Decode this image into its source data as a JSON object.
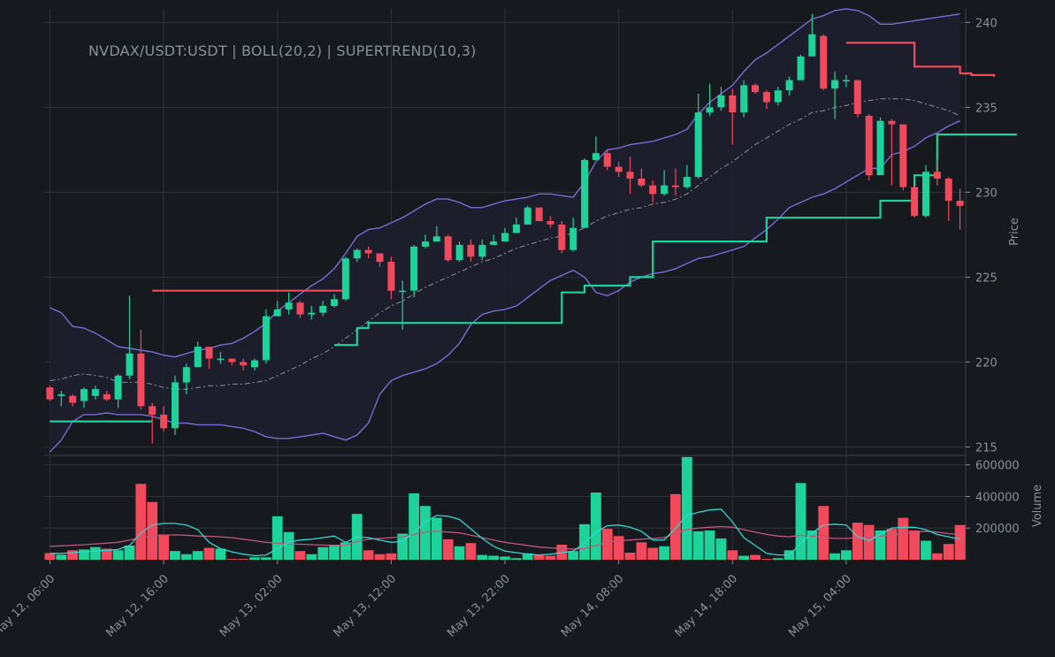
{
  "chart_data": {
    "type": "candlestick",
    "title": "NVDAX/USDT:USDT | BOLL(20,2) | SUPERTREND(10,3)",
    "price_axis": {
      "label": "Price",
      "ylim": [
        214.5,
        240.8
      ],
      "ticks": [
        215,
        220,
        225,
        230,
        235,
        240
      ]
    },
    "volume_axis": {
      "label": "Volume",
      "ylim": [
        0,
        660000
      ],
      "ticks": [
        200000,
        400000,
        600000
      ],
      "tick_labels": [
        "200000",
        "400000",
        "600000"
      ]
    },
    "x_tick_labels": [
      "May 12, 06:00",
      "May 12, 16:00",
      "May 13, 02:00",
      "May 13, 12:00",
      "May 13, 22:00",
      "May 14, 08:00",
      "May 14, 18:00",
      "May 15, 04:00"
    ],
    "x_tick_positions": [
      0,
      10,
      20,
      30,
      40,
      50,
      60,
      70
    ],
    "grid": true,
    "colors": {
      "background": "#16191e",
      "grid": "#2e3339",
      "up": "#1ed39a",
      "down": "#f2495c",
      "boll_band": "#7b6ad6",
      "boll_fill": "#1e1f2e",
      "boll_mid": "#8a8f9c",
      "supertrend_up": "#1ed39a",
      "supertrend_down": "#f2495c",
      "vol_ma_fast": "#2fd7d0",
      "vol_ma_slow": "#c2577e",
      "text": "#8b9098"
    },
    "candles": [
      [
        218.5,
        217.8,
        218.6,
        217.7
      ],
      [
        218.0,
        218.1,
        218.3,
        217.4
      ],
      [
        218.0,
        217.6,
        218.1,
        217.4
      ],
      [
        217.7,
        218.4,
        218.5,
        217.3
      ],
      [
        218.0,
        218.4,
        218.6,
        217.8
      ],
      [
        218.1,
        217.8,
        218.3,
        217.7
      ],
      [
        217.8,
        219.2,
        219.3,
        217.3
      ],
      [
        219.2,
        220.5,
        223.9,
        219.0
      ],
      [
        220.5,
        217.4,
        221.9,
        217.2
      ],
      [
        217.4,
        216.9,
        217.6,
        215.2
      ],
      [
        216.9,
        216.1,
        217.4,
        215.9
      ],
      [
        216.1,
        218.8,
        219.2,
        215.7
      ],
      [
        218.8,
        219.7,
        219.9,
        218.1
      ],
      [
        219.7,
        220.9,
        221.2,
        219.7
      ],
      [
        220.9,
        220.2,
        220.9,
        219.6
      ],
      [
        220.2,
        220.2,
        220.6,
        219.9
      ],
      [
        220.2,
        220.0,
        220.2,
        219.8
      ],
      [
        220.0,
        219.8,
        220.2,
        219.5
      ],
      [
        219.7,
        220.1,
        220.2,
        219.5
      ],
      [
        220.1,
        222.7,
        223.1,
        219.9
      ],
      [
        222.7,
        223.1,
        223.6,
        222.7
      ],
      [
        223.1,
        223.5,
        224.1,
        222.8
      ],
      [
        223.5,
        222.8,
        223.6,
        222.6
      ],
      [
        222.8,
        222.9,
        223.3,
        222.5
      ],
      [
        222.9,
        223.3,
        223.6,
        222.7
      ],
      [
        223.3,
        223.7,
        224.0,
        223.2
      ],
      [
        223.7,
        226.1,
        226.2,
        223.6
      ],
      [
        226.1,
        226.6,
        226.7,
        225.9
      ],
      [
        226.6,
        226.4,
        226.8,
        226.1
      ],
      [
        226.4,
        225.9,
        226.4,
        225.6
      ],
      [
        225.9,
        224.2,
        226.2,
        223.7
      ],
      [
        224.2,
        224.2,
        224.8,
        221.9
      ],
      [
        224.2,
        226.8,
        226.9,
        223.8
      ],
      [
        226.8,
        227.1,
        227.5,
        226.7
      ],
      [
        227.1,
        227.4,
        228.0,
        227.1
      ],
      [
        227.4,
        226.0,
        227.5,
        225.9
      ],
      [
        226.0,
        226.9,
        227.1,
        225.9
      ],
      [
        226.9,
        226.2,
        227.2,
        225.9
      ],
      [
        226.2,
        226.9,
        227.2,
        226.0
      ],
      [
        226.9,
        227.1,
        227.5,
        226.9
      ],
      [
        227.1,
        227.6,
        227.9,
        227.1
      ],
      [
        227.6,
        228.1,
        228.5,
        227.6
      ],
      [
        228.1,
        229.1,
        229.2,
        228.1
      ],
      [
        229.1,
        228.3,
        229.1,
        228.3
      ],
      [
        228.3,
        228.1,
        228.6,
        227.9
      ],
      [
        228.1,
        226.6,
        228.3,
        226.4
      ],
      [
        226.6,
        227.9,
        228.5,
        226.5
      ],
      [
        227.9,
        231.9,
        232.0,
        227.9
      ],
      [
        231.9,
        232.3,
        233.3,
        231.9
      ],
      [
        232.3,
        231.5,
        232.5,
        231.3
      ],
      [
        231.5,
        231.2,
        231.8,
        230.9
      ],
      [
        231.2,
        230.8,
        232.1,
        229.9
      ],
      [
        230.8,
        230.4,
        231.4,
        230.3
      ],
      [
        230.4,
        229.9,
        230.7,
        229.4
      ],
      [
        229.9,
        230.4,
        231.3,
        229.8
      ],
      [
        230.4,
        230.3,
        231.4,
        229.8
      ],
      [
        230.3,
        230.9,
        231.6,
        230.2
      ],
      [
        230.9,
        234.7,
        235.8,
        230.8
      ],
      [
        234.7,
        235.0,
        236.4,
        234.5
      ],
      [
        235.0,
        235.7,
        236.2,
        234.8
      ],
      [
        235.7,
        234.7,
        236.1,
        232.8
      ],
      [
        234.7,
        236.3,
        236.6,
        234.4
      ],
      [
        236.3,
        235.9,
        236.4,
        235.8
      ],
      [
        235.9,
        235.3,
        236.0,
        234.9
      ],
      [
        235.3,
        236.0,
        236.2,
        235.1
      ],
      [
        236.0,
        236.6,
        236.8,
        235.7
      ],
      [
        236.6,
        238.0,
        238.1,
        236.6
      ],
      [
        238.0,
        239.3,
        240.5,
        238.0
      ],
      [
        239.2,
        236.1,
        239.3,
        236.0
      ],
      [
        236.1,
        236.6,
        237.1,
        234.3
      ],
      [
        236.6,
        236.6,
        236.9,
        236.2
      ],
      [
        236.6,
        234.6,
        236.6,
        234.4
      ],
      [
        234.5,
        231.0,
        234.6,
        230.7
      ],
      [
        231.0,
        234.2,
        234.4,
        231.0
      ],
      [
        234.2,
        234.0,
        234.3,
        230.4
      ],
      [
        234.0,
        230.3,
        234.0,
        230.1
      ],
      [
        230.3,
        228.6,
        230.4,
        228.5
      ],
      [
        228.6,
        231.2,
        231.6,
        228.5
      ],
      [
        231.2,
        230.8,
        231.9,
        230.4
      ],
      [
        230.8,
        229.5,
        230.9,
        228.3
      ],
      [
        229.5,
        229.2,
        230.2,
        227.8
      ]
    ],
    "volumes": [
      42000,
      32000,
      60000,
      65000,
      80000,
      70000,
      60000,
      90000,
      480000,
      365000,
      160000,
      55000,
      35000,
      55000,
      75000,
      70000,
      5000,
      5000,
      15000,
      15000,
      275000,
      175000,
      55000,
      35000,
      80000,
      95000,
      110000,
      290000,
      60000,
      35000,
      40000,
      165000,
      420000,
      340000,
      265000,
      130000,
      85000,
      105000,
      30000,
      25000,
      20000,
      10000,
      40000,
      30000,
      25000,
      95000,
      55000,
      225000,
      425000,
      195000,
      150000,
      45000,
      110000,
      75000,
      85000,
      415000,
      650000,
      180000,
      185000,
      135000,
      60000,
      25000,
      30000,
      5000,
      10000,
      60000,
      485000,
      185000,
      340000,
      40000,
      60000,
      235000,
      220000,
      185000,
      195000,
      265000,
      185000,
      120000,
      40000,
      100000,
      220000
    ],
    "boll_upper": [
      223.2,
      222.9,
      222.1,
      222.0,
      221.7,
      221.3,
      220.9,
      220.8,
      220.7,
      220.6,
      220.4,
      220.3,
      220.5,
      220.7,
      220.8,
      221.0,
      221.1,
      221.4,
      221.8,
      222.3,
      223.0,
      223.5,
      224.0,
      224.5,
      224.9,
      225.5,
      226.4,
      227.4,
      227.8,
      227.9,
      228.2,
      228.5,
      228.9,
      229.3,
      229.6,
      229.6,
      229.4,
      229.1,
      229.1,
      229.3,
      229.5,
      229.6,
      229.7,
      229.9,
      229.9,
      229.8,
      229.7,
      230.6,
      231.8,
      232.5,
      232.6,
      232.8,
      232.9,
      233.0,
      233.2,
      233.4,
      233.7,
      234.6,
      235.3,
      235.8,
      236.3,
      237.1,
      237.8,
      238.2,
      238.7,
      239.2,
      239.7,
      240.2,
      240.4,
      240.7,
      240.8,
      240.7,
      240.4,
      239.9,
      239.9,
      240.0,
      240.1,
      240.2,
      240.3,
      240.4,
      240.5
    ],
    "boll_mid": [
      218.9,
      219.0,
      219.2,
      219.3,
      219.2,
      219.1,
      218.8,
      218.8,
      218.8,
      218.7,
      218.5,
      218.4,
      218.4,
      218.5,
      218.6,
      218.6,
      218.7,
      218.7,
      218.8,
      218.9,
      219.2,
      219.5,
      219.8,
      220.2,
      220.5,
      220.9,
      221.4,
      221.9,
      222.4,
      222.9,
      223.3,
      223.6,
      224.0,
      224.4,
      224.7,
      225.0,
      225.3,
      225.6,
      225.9,
      226.1,
      226.4,
      226.7,
      226.9,
      227.1,
      227.3,
      227.4,
      227.6,
      227.9,
      228.3,
      228.6,
      228.8,
      229.0,
      229.1,
      229.3,
      229.4,
      229.6,
      229.9,
      230.4,
      230.9,
      231.4,
      231.8,
      232.3,
      232.8,
      233.2,
      233.6,
      234.0,
      234.3,
      234.7,
      234.8,
      235.0,
      235.1,
      235.3,
      235.4,
      235.5,
      235.5,
      235.5,
      235.4,
      235.2,
      235.0,
      234.8,
      234.5
    ],
    "boll_lower": [
      214.7,
      215.4,
      216.5,
      216.9,
      216.9,
      217.0,
      216.9,
      216.9,
      216.9,
      216.8,
      216.6,
      216.4,
      216.4,
      216.3,
      216.3,
      216.3,
      216.2,
      216.1,
      215.9,
      215.6,
      215.5,
      215.5,
      215.6,
      215.7,
      215.8,
      215.6,
      215.4,
      215.7,
      216.4,
      218.1,
      218.9,
      219.2,
      219.4,
      219.6,
      219.9,
      220.4,
      221.1,
      222.2,
      222.8,
      223.0,
      223.1,
      223.3,
      223.8,
      224.3,
      224.8,
      225.1,
      225.4,
      225.0,
      224.1,
      223.9,
      224.2,
      224.7,
      225.0,
      225.2,
      225.3,
      225.5,
      225.8,
      226.1,
      226.2,
      226.4,
      226.6,
      226.8,
      227.3,
      227.8,
      228.4,
      229.1,
      229.4,
      229.7,
      229.9,
      230.2,
      230.6,
      231.0,
      231.4,
      231.4,
      232.2,
      232.4,
      232.7,
      233.2,
      233.5,
      233.9,
      234.2
    ],
    "supertrend": [
      {
        "dir": "up",
        "values": [
          216.5,
          216.5,
          216.5,
          216.5,
          216.5,
          216.5,
          216.5,
          216.5,
          216.5,
          216.5
        ]
      },
      {
        "dir": "down",
        "start": 9,
        "values": [
          224.2,
          224.2,
          224.2,
          224.2,
          224.2,
          224.2,
          224.2,
          224.2,
          224.2,
          224.2,
          224.2,
          224.2,
          224.2,
          224.2,
          224.2,
          224.2,
          224.2,
          224.2
        ]
      },
      {
        "dir": "up",
        "start": 25,
        "values": [
          221.0,
          221.0,
          222.0,
          222.3,
          222.3,
          222.3,
          222.3,
          222.3,
          222.3,
          222.3,
          222.3,
          222.3,
          222.3,
          222.3,
          222.3,
          222.3,
          222.3,
          222.3,
          222.3,
          222.3,
          224.1,
          224.1,
          224.5,
          224.5,
          224.5,
          224.5,
          225.0,
          225.0,
          227.1,
          227.1,
          227.1,
          227.1,
          227.1,
          227.1,
          227.1,
          227.1,
          227.1,
          227.1,
          228.5,
          228.5,
          228.5,
          228.5,
          228.5,
          228.5,
          228.5,
          228.5,
          228.5,
          228.5,
          229.5,
          229.5,
          229.5,
          231.0,
          231.0,
          233.4,
          233.4,
          233.4,
          233.4,
          233.4,
          233.4,
          233.4,
          233.4
        ]
      },
      {
        "dir": "down",
        "start": 70,
        "values": [
          238.8,
          238.8,
          238.8,
          238.8,
          238.8,
          238.8,
          237.4,
          237.4,
          237.4,
          237.4,
          237.0,
          236.9,
          236.9,
          236.8
        ]
      }
    ],
    "vol_ma_fast": [
      40000,
      40000,
      45000,
      50000,
      55000,
      60000,
      65000,
      90000,
      170000,
      220000,
      230000,
      230000,
      220000,
      190000,
      110000,
      70000,
      50000,
      35000,
      25000,
      30000,
      70000,
      110000,
      125000,
      130000,
      140000,
      150000,
      110000,
      145000,
      140000,
      125000,
      110000,
      115000,
      175000,
      240000,
      280000,
      275000,
      255000,
      195000,
      135000,
      85000,
      55000,
      45000,
      35000,
      30000,
      35000,
      45000,
      55000,
      105000,
      175000,
      215000,
      220000,
      205000,
      180000,
      125000,
      125000,
      200000,
      280000,
      300000,
      315000,
      320000,
      240000,
      140000,
      90000,
      40000,
      30000,
      30000,
      105000,
      170000,
      220000,
      225000,
      220000,
      145000,
      120000,
      160000,
      200000,
      205000,
      205000,
      190000,
      160000,
      145000,
      130000
    ],
    "vol_ma_slow": [
      85000,
      88000,
      92000,
      95000,
      100000,
      105000,
      110000,
      125000,
      140000,
      150000,
      155000,
      157000,
      155000,
      150000,
      148000,
      145000,
      140000,
      130000,
      120000,
      110000,
      105000,
      100000,
      98000,
      95000,
      93000,
      90000,
      92000,
      115000,
      130000,
      135000,
      140000,
      145000,
      160000,
      175000,
      180000,
      175000,
      170000,
      155000,
      140000,
      125000,
      110000,
      100000,
      90000,
      80000,
      75000,
      70000,
      68000,
      70000,
      90000,
      110000,
      120000,
      125000,
      130000,
      135000,
      140000,
      165000,
      190000,
      200000,
      205000,
      210000,
      205000,
      190000,
      175000,
      160000,
      150000,
      145000,
      155000,
      150000,
      140000,
      135000,
      135000,
      140000,
      145000,
      150000,
      155000,
      165000,
      175000,
      180000,
      175000,
      165000,
      160000
    ]
  }
}
